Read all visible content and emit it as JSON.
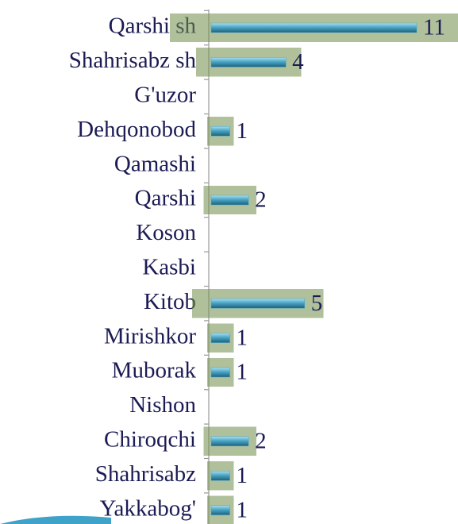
{
  "chart_data": {
    "type": "hbar",
    "categories": [
      "Qarshi sh",
      "Shahrisabz sh",
      "G'uzor",
      "Dehqonobod",
      "Qamashi",
      "Qarshi ",
      "Koson",
      "Kasbi",
      "Kitob",
      "Mirishkor",
      "Muborak",
      "Nishon",
      "Chiroqchi",
      "Shahrisabz",
      "Yakkabog'"
    ],
    "values": [
      11,
      4,
      null,
      1,
      null,
      2,
      null,
      null,
      5,
      1,
      1,
      null,
      2,
      1,
      1
    ],
    "color": "#4aa6c6"
  }
}
